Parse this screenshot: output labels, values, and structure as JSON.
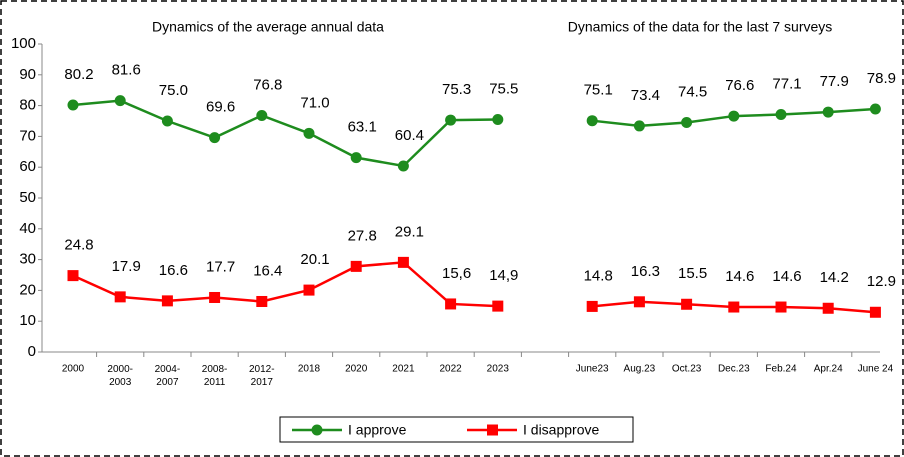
{
  "chart_data": {
    "type": "line",
    "annotations": [
      "Dynamics of the average annual data",
      "Dynamics of the data for the last 7 surveys"
    ],
    "categories": [
      "2000",
      "2000-2003",
      "2004-2007",
      "2008-2011",
      "2012-2017",
      "2018",
      "2020",
      "2021",
      "2022",
      "2023",
      null,
      "June23",
      "Aug.23",
      "Oct.23",
      "Dec.23",
      "Feb.24",
      "Apr.24",
      "June 24"
    ],
    "series": [
      {
        "name": "I approve",
        "color": "#1e8c1e",
        "marker": "circle",
        "values": [
          80.2,
          81.6,
          75.0,
          69.6,
          76.8,
          71.0,
          63.1,
          60.4,
          75.3,
          75.5,
          null,
          75.1,
          73.4,
          74.5,
          76.6,
          77.1,
          77.9,
          78.9
        ],
        "value_labels": [
          "80.2",
          "81.6",
          "75.0",
          "69.6",
          "76.8",
          "71.0",
          "63.1",
          "60.4",
          "75.3",
          "75.5",
          null,
          "75.1",
          "73.4",
          "74.5",
          "76.6",
          "77.1",
          "77.9",
          "78.9"
        ]
      },
      {
        "name": "I disapprove",
        "color": "#ff0000",
        "marker": "square",
        "values": [
          24.8,
          17.9,
          16.6,
          17.7,
          16.4,
          20.1,
          27.8,
          29.1,
          15.6,
          14.9,
          null,
          14.8,
          16.3,
          15.5,
          14.6,
          14.6,
          14.2,
          12.9
        ],
        "value_labels": [
          "24.8",
          "17.9",
          "16.6",
          "17.7",
          "16.4",
          "20.1",
          "27.8",
          "29.1",
          "15,6",
          "14,9",
          null,
          "14.8",
          "16.3",
          "15.5",
          "14.6",
          "14.6",
          "14.2",
          "12.9"
        ]
      }
    ],
    "ylim": [
      0,
      100
    ],
    "yticks": [
      0,
      10,
      20,
      30,
      40,
      50,
      60,
      70,
      80,
      90,
      100
    ],
    "grid": false,
    "legend": "bottom"
  }
}
